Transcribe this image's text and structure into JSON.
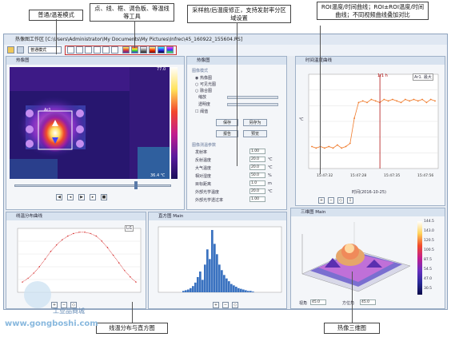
{
  "window": {
    "title": "热像图工作区 [C:\\Users\\Administrator\\My Documents\\My Pictures\\Infrec\\45_160922_155604.RS]"
  },
  "callouts": {
    "mode": "普通/温差模式",
    "tools": "点、线、框、调色板、等温线等工具",
    "correction": "采样前/后温度修正，支持发射率分区域设置",
    "roi_curves": "ROI温度/时间曲线；ROI±ROI温度/时间曲线；不同视频曲线叠加对比",
    "line_hist": "线温分布与直方图",
    "thermal3d": "热像三维图"
  },
  "thermal_panel": {
    "title": "热像图",
    "mode_value": "普通模式",
    "scale_max": "77.0",
    "scale_min": "36.4 ℃",
    "cursor_label": "Ar1"
  },
  "props_panel": {
    "title": "热像图",
    "section_image": "图像模式",
    "radio_thermal": "热像图",
    "radio_visible": "可见光图",
    "radio_fusion": "融合图",
    "label_zoom": "缩放",
    "label_transparency": "透明度",
    "label_threshold": "阈值",
    "btn_save": "保存",
    "btn_saveas": "另存为",
    "btn_report": "报告",
    "btn_preview": "预览",
    "section_params": "图像测温参数",
    "params": [
      {
        "label": "发射率",
        "value": "1.00"
      },
      {
        "label": "反射温度",
        "value": "20.0"
      },
      {
        "label": "大气温度",
        "value": "20.0"
      },
      {
        "label": "相对湿度",
        "value": "50.0"
      },
      {
        "label": "目标距离",
        "value": "1.0"
      },
      {
        "label": "外部光学温度",
        "value": "20.0"
      },
      {
        "label": "外部光学透过率",
        "value": "1.00"
      }
    ],
    "unit_c": "℃",
    "unit_pct": "%",
    "unit_m": "m"
  },
  "roi_panel": {
    "title": "时间温度曲线",
    "legend": "Ar1. 最大",
    "marker": "1/1 h",
    "ylabel": "℃",
    "xlabel": "时间(2016-10-25)",
    "x_ticks": [
      "15:47:32",
      "15:47:28",
      "15:47:35",
      "15:47:56"
    ]
  },
  "line_panel": {
    "title": "线温分布曲线",
    "legend": "Li1"
  },
  "hist_panel": {
    "title": "直方图 Main"
  },
  "panel3d": {
    "title": "三维图 Main",
    "colorbar_ticks": [
      "144.5",
      "143.0",
      "120.5",
      "100.5",
      "87.5",
      "54.5",
      "47.0",
      "30.5"
    ],
    "label_angle": "视角",
    "angle_value": "45.0",
    "label_direction": "方位角",
    "direction_value": "45.0"
  },
  "watermark": {
    "url": "www.gongboshi.com",
    "name": "工业品商城"
  },
  "chart_data": [
    {
      "type": "line",
      "title": "时间温度曲线",
      "xlabel": "时间(2016-10-25)",
      "ylabel": "℃",
      "series": [
        {
          "name": "Ar1. 最大",
          "values": [
            54,
            53,
            54,
            53,
            54,
            53,
            55,
            53,
            54,
            56,
            72,
            82,
            83,
            82,
            84,
            83,
            82,
            84,
            83,
            84,
            83,
            82,
            84,
            83,
            84,
            83,
            84,
            82,
            84,
            83
          ]
        }
      ],
      "ylim": [
        40,
        100
      ]
    },
    {
      "type": "line",
      "title": "线温分布曲线",
      "series": [
        {
          "name": "Li1",
          "values": [
            28,
            31,
            35,
            40,
            46,
            52,
            57,
            61,
            64,
            66,
            67,
            67,
            66,
            64,
            60,
            55,
            49,
            43,
            37,
            32,
            28
          ]
        }
      ],
      "ylim": [
        20,
        70
      ]
    },
    {
      "type": "bar",
      "title": "直方图 Main",
      "values": [
        2,
        3,
        4,
        6,
        9,
        14,
        22,
        30,
        18,
        40,
        62,
        48,
        90,
        70,
        55,
        40,
        32,
        25,
        20,
        16,
        12,
        10,
        8,
        6,
        5,
        4,
        3,
        2,
        2,
        1
      ]
    }
  ]
}
